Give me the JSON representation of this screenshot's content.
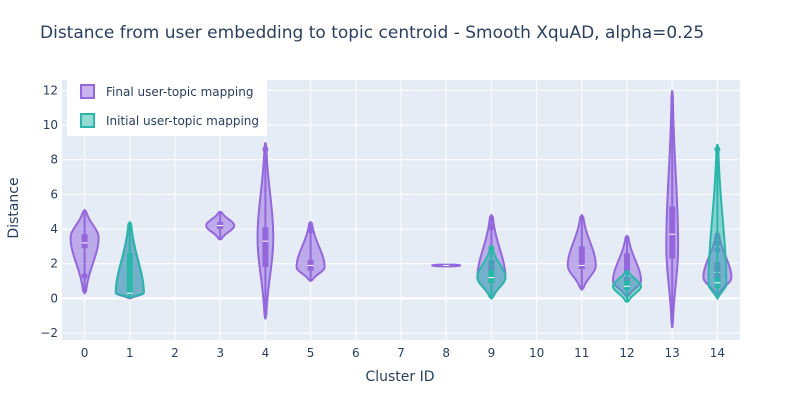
{
  "chart_data": {
    "type": "violin",
    "title": "Distance from user embedding to topic centroid - Smooth XquAD, alpha=0.25",
    "xlabel": "Cluster ID",
    "ylabel": "Distance",
    "categories": [
      "0",
      "1",
      "2",
      "3",
      "4",
      "5",
      "6",
      "7",
      "8",
      "9",
      "10",
      "11",
      "12",
      "13",
      "14"
    ],
    "xlim": [
      -0.5,
      14.5
    ],
    "ylim": [
      -2.4,
      12.6
    ],
    "y_ticks": [
      -2,
      0,
      2,
      4,
      6,
      8,
      10,
      12
    ],
    "grid": true,
    "legend_position": "top-left",
    "series": [
      {
        "name": "Final user-topic mapping",
        "color": "#9467dd",
        "violins": [
          {
            "x": 0,
            "min": 0.3,
            "max": 5.1,
            "q1": 2.9,
            "median": 3.2,
            "q3": 3.7,
            "mode": 3.5,
            "outliers": [
              1.3
            ]
          },
          {
            "x": 1,
            "min": 0.0,
            "max": 4.3,
            "q1": 0.2,
            "median": 0.3,
            "q3": 0.4,
            "mode": 0.3,
            "outliers": []
          },
          {
            "x": 3,
            "min": 3.4,
            "max": 5.0,
            "q1": 4.0,
            "median": 4.2,
            "q3": 4.4,
            "mode": 4.2,
            "outliers": []
          },
          {
            "x": 4,
            "min": -1.2,
            "max": 9.0,
            "q1": 1.8,
            "median": 3.3,
            "q3": 4.1,
            "mode": 3.5,
            "outliers": [
              8.6
            ]
          },
          {
            "x": 5,
            "min": 1.0,
            "max": 4.4,
            "q1": 1.6,
            "median": 1.9,
            "q3": 2.2,
            "mode": 1.8,
            "outliers": [
              3.9
            ]
          },
          {
            "x": 8,
            "min": 1.85,
            "max": 1.95,
            "q1": 1.88,
            "median": 1.9,
            "q3": 1.92,
            "mode": 1.9,
            "outliers": []
          },
          {
            "x": 9,
            "min": 0.0,
            "max": 4.8,
            "q1": 0.9,
            "median": 1.4,
            "q3": 2.2,
            "mode": 1.2,
            "outliers": [
              4.1
            ]
          },
          {
            "x": 11,
            "min": 0.5,
            "max": 4.8,
            "q1": 1.7,
            "median": 1.9,
            "q3": 3.0,
            "mode": 1.9,
            "outliers": []
          },
          {
            "x": 12,
            "min": 0.1,
            "max": 3.6,
            "q1": 0.6,
            "median": 1.3,
            "q3": 2.6,
            "mode": 1.0,
            "outliers": []
          },
          {
            "x": 13,
            "min": -1.7,
            "max": 12.0,
            "q1": 2.3,
            "median": 3.7,
            "q3": 5.3,
            "mode": 3.0,
            "outliers": []
          },
          {
            "x": 14,
            "min": 0.2,
            "max": 3.8,
            "q1": 0.9,
            "median": 1.5,
            "q3": 2.1,
            "mode": 1.2,
            "outliers": [
              2.8,
              3.2,
              3.6
            ]
          }
        ]
      },
      {
        "name": "Initial user-topic mapping",
        "color": "#2ab7a9",
        "violins": [
          {
            "x": 1,
            "min": 0.05,
            "max": 4.4,
            "q1": 0.2,
            "median": 0.3,
            "q3": 2.6,
            "mode": 0.3,
            "outliers": []
          },
          {
            "x": 9,
            "min": 0.0,
            "max": 2.9,
            "q1": 0.9,
            "median": 1.2,
            "q3": 1.6,
            "mode": 1.2,
            "outliers": [
              2.9
            ]
          },
          {
            "x": 12,
            "min": -0.2,
            "max": 1.6,
            "q1": 0.5,
            "median": 0.7,
            "q3": 1.0,
            "mode": 0.7,
            "outliers": []
          },
          {
            "x": 14,
            "min": 0.0,
            "max": 8.9,
            "q1": 0.6,
            "median": 0.9,
            "q3": 1.2,
            "mode": 0.8,
            "outliers": [
              8.6
            ]
          }
        ]
      }
    ]
  }
}
